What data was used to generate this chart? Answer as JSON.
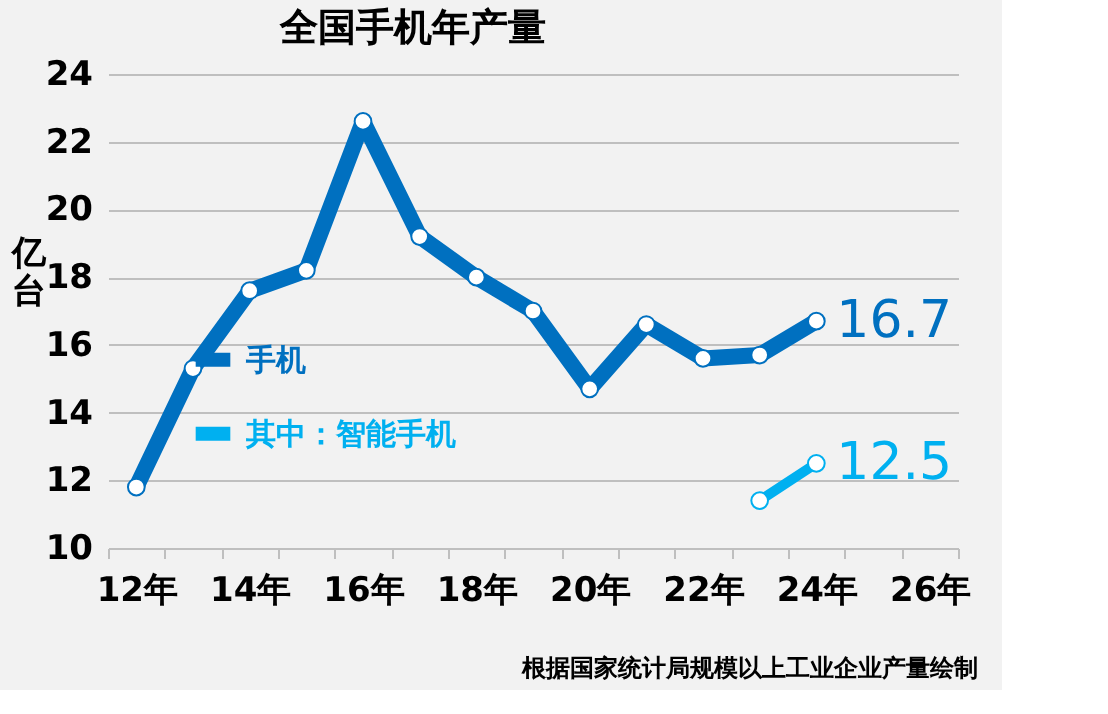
{
  "chart_data": {
    "type": "line",
    "title": "全国手机年产量",
    "ylabel": "亿台",
    "categories": [
      "12年",
      null,
      "14年",
      null,
      "16年",
      null,
      "18年",
      null,
      "20年",
      null,
      "22年",
      null,
      "24年",
      null,
      "26年"
    ],
    "series": [
      {
        "name": "手机",
        "color": "#0070c0",
        "values": [
          11.8,
          15.3,
          17.6,
          18.2,
          22.6,
          19.2,
          18.0,
          17.0,
          14.7,
          16.6,
          15.6,
          15.7,
          16.7,
          null,
          null
        ],
        "value_labels": [
          null,
          null,
          null,
          null,
          null,
          null,
          null,
          null,
          null,
          null,
          null,
          null,
          "16.7",
          null,
          null
        ]
      },
      {
        "name": "其中：智能手机",
        "color": "#00b0f0",
        "values": [
          null,
          null,
          null,
          null,
          null,
          null,
          null,
          null,
          null,
          null,
          null,
          11.4,
          12.5,
          null,
          null
        ],
        "value_labels": [
          null,
          null,
          null,
          null,
          null,
          null,
          null,
          null,
          null,
          null,
          null,
          null,
          "12.5",
          null,
          null
        ]
      }
    ],
    "ylim": [
      10,
      24
    ],
    "yticks": [
      10,
      12,
      14,
      16,
      18,
      20,
      22,
      24
    ],
    "grid": "y",
    "legend": "left",
    "marker": "circle",
    "line_style": "solid",
    "annotations": [
      "根据国家统计局规模以上工业企业产量绘制"
    ]
  }
}
